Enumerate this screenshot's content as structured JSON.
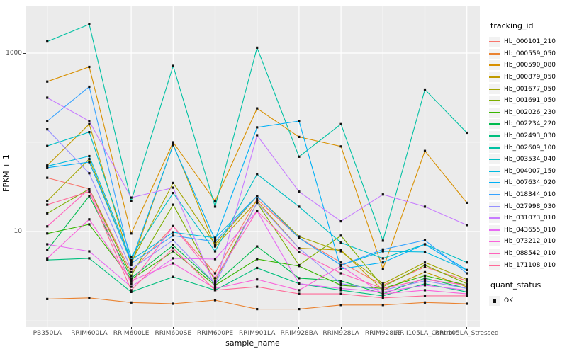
{
  "figure": {
    "y_axis": {
      "title": "FPKM + 1",
      "ticks": [
        {
          "label": "1000",
          "value": 1000
        },
        {
          "label": "10",
          "value": 10
        }
      ]
    },
    "x_axis": {
      "title": "sample_name"
    },
    "legend": {
      "title": "tracking_id"
    },
    "quant_legend": {
      "title": "quant_status",
      "entries": [
        {
          "label": "OK"
        }
      ]
    }
  },
  "chart_data": {
    "type": "line",
    "title": "",
    "xlabel": "sample_name",
    "ylabel": "FPKM + 1",
    "yscale": "log10",
    "ylim": [
      1,
      3000
    ],
    "yticks": [
      1000,
      10
    ],
    "minor_gridlines": [
      100,
      1
    ],
    "grid": true,
    "legend_position": "right",
    "panel_background": "#EBEBEB",
    "point_color": "#111111",
    "point_shape": "square",
    "categories": [
      "PB350LA",
      "RRIM600LA",
      "RRIM600LE",
      "RRIM600SE",
      "RRIM600PE",
      "RRIM901LA",
      "RRIM928BA",
      "RRIM928LA",
      "RRIM928LE",
      "RRII105LA_Control",
      "RRII105LA_Stressed"
    ],
    "series": [
      {
        "name": "Hb_000101_210",
        "color": "#F8766D",
        "values": [
          40,
          30,
          3.5,
          11.5,
          3.4,
          23,
          8.5,
          4.5,
          2.5,
          4.0,
          2.8
        ]
      },
      {
        "name": "Hb_000559_050",
        "color": "#EA8331",
        "values": [
          1.75,
          1.8,
          1.6,
          1.55,
          1.7,
          1.35,
          1.35,
          1.5,
          1.5,
          1.6,
          1.55
        ]
      },
      {
        "name": "Hb_000590_080",
        "color": "#D89000",
        "values": [
          480,
          700,
          9.5,
          100,
          22,
          240,
          115,
          90,
          3.8,
          80,
          21
        ]
      },
      {
        "name": "Hb_000879_050",
        "color": "#C09B00",
        "values": [
          55,
          160,
          4.2,
          95,
          6.8,
          22,
          6.5,
          6.2,
          2.2,
          3.5,
          2.4
        ]
      },
      {
        "name": "Hb_001677_050",
        "color": "#A3A500",
        "values": [
          22,
          65,
          4.5,
          35,
          7.2,
          25,
          8.8,
          6.0,
          2.6,
          4.5,
          2.9
        ]
      },
      {
        "name": "Hb_001691_050",
        "color": "#7CAE00",
        "values": [
          16,
          30,
          3.2,
          20,
          2.8,
          21,
          4.2,
          9.0,
          2.4,
          4.2,
          2.6
        ]
      },
      {
        "name": "Hb_002026_230",
        "color": "#39B600",
        "values": [
          9.5,
          12,
          2.9,
          6.0,
          2.5,
          4.9,
          4.1,
          2.5,
          2.3,
          3.2,
          2.5
        ]
      },
      {
        "name": "Hb_002234_220",
        "color": "#00BB4E",
        "values": [
          6.2,
          25,
          3.0,
          7.0,
          2.6,
          6.8,
          3.0,
          2.8,
          2.0,
          3.0,
          2.3
        ]
      },
      {
        "name": "Hb_002493_030",
        "color": "#00BF7D",
        "values": [
          4.8,
          5.0,
          2.1,
          3.1,
          2.2,
          3.9,
          2.6,
          2.2,
          1.9,
          2.6,
          2.1
        ]
      },
      {
        "name": "Hb_002609_100",
        "color": "#00C1A3",
        "values": [
          1350,
          2100,
          22,
          720,
          19,
          1150,
          69,
          160,
          7.9,
          390,
          128
        ]
      },
      {
        "name": "Hb_003534_040",
        "color": "#00BFC4",
        "values": [
          91,
          130,
          5.2,
          27,
          6.0,
          44,
          19,
          7.5,
          5.0,
          7.2,
          4.5
        ]
      },
      {
        "name": "Hb_004007_150",
        "color": "#00BAE0",
        "values": [
          54,
          70,
          4.8,
          9.8,
          8.5,
          25,
          8.5,
          4.2,
          6.0,
          5.9,
          3.7
        ]
      },
      {
        "name": "Hb_007634_020",
        "color": "#00B0F6",
        "values": [
          52,
          60,
          4.6,
          93,
          8.1,
          147,
          173,
          3.8,
          4.5,
          7.2,
          3.7
        ]
      },
      {
        "name": "Hb_018344_010",
        "color": "#35A2FF",
        "values": [
          173,
          420,
          4.4,
          9.0,
          7.7,
          25,
          8.5,
          4.2,
          6.3,
          8.0,
          3.4
        ]
      },
      {
        "name": "Hb_027998_030",
        "color": "#9590FF",
        "values": [
          140,
          45,
          3.8,
          8.0,
          2.6,
          21,
          6.5,
          2.6,
          2.2,
          2.8,
          2.3
        ]
      },
      {
        "name": "Hb_031073_010",
        "color": "#C77CFF",
        "values": [
          316,
          173,
          24,
          31,
          2.4,
          120,
          28,
          13,
          26,
          19,
          11.8
        ]
      },
      {
        "name": "Hb_043655_010",
        "color": "#E76BF3",
        "values": [
          7.2,
          6.0,
          2.4,
          5.0,
          4.9,
          17,
          2.6,
          2.3,
          2.1,
          2.5,
          2.2
        ]
      },
      {
        "name": "Hb_073212_010",
        "color": "#FA62DB",
        "values": [
          5.0,
          13.7,
          2.8,
          4.4,
          2.3,
          2.9,
          2.2,
          4.1,
          2.0,
          2.2,
          2.0
        ]
      },
      {
        "name": "Hb_088542_010",
        "color": "#FF62BC",
        "values": [
          11.4,
          30,
          2.6,
          11.5,
          3.0,
          17,
          5.9,
          3.4,
          2.3,
          2.9,
          2.5
        ]
      },
      {
        "name": "Hb_171108_010",
        "color": "#FF6A98",
        "values": [
          20,
          28,
          2.2,
          6.5,
          2.2,
          2.4,
          2.0,
          2.0,
          1.8,
          1.9,
          1.9
        ]
      }
    ]
  }
}
